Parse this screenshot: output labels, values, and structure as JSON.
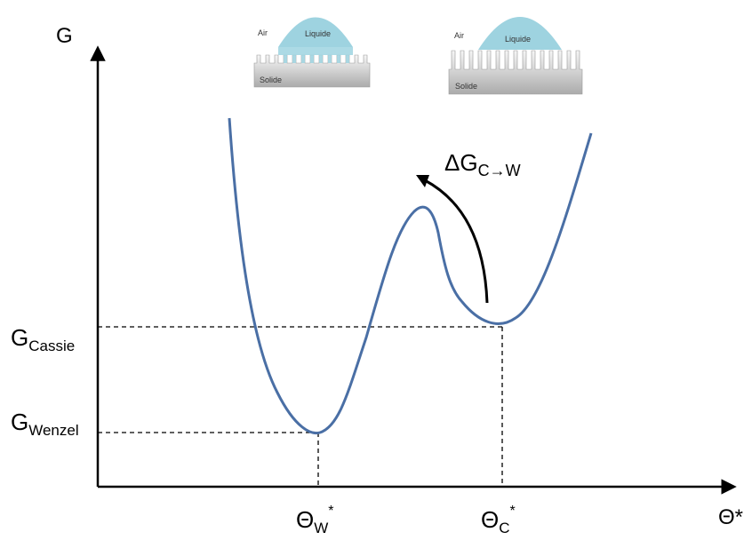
{
  "axes": {
    "y_label": "G",
    "x_label": "Θ*"
  },
  "levels": {
    "cassie": {
      "main": "G",
      "sub": "Cassie"
    },
    "wenzel": {
      "main": "G",
      "sub": "Wenzel"
    }
  },
  "minima": {
    "wenzel": {
      "main": "Θ",
      "sub": "W",
      "sup": "*"
    },
    "cassie": {
      "main": "Θ",
      "sub": "C",
      "sup": "*"
    }
  },
  "transition": {
    "main": "ΔG",
    "sub": "C→W"
  },
  "insets": {
    "wenzel_state": {
      "air": "Air",
      "liquid": "Liquide",
      "solid": "Solide"
    },
    "cassie_state": {
      "air": "Air",
      "liquid": "Liquide",
      "solid": "Solide"
    }
  },
  "colors": {
    "curve": "#4a6fa5",
    "droplet": "#9ed3e0",
    "solid_top": "#f4f4f4",
    "solid_bottom": "#b0b0b0",
    "axes": "#000000"
  }
}
